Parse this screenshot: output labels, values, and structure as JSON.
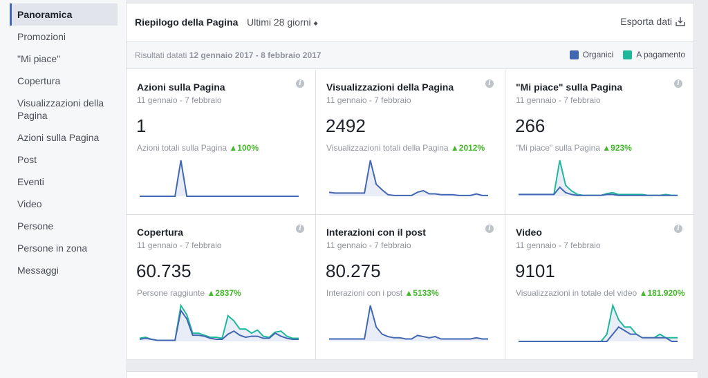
{
  "sidebar": {
    "items": [
      {
        "label": "Panoramica",
        "active": true
      },
      {
        "label": "Promozioni"
      },
      {
        "label": "\"Mi piace\""
      },
      {
        "label": "Copertura"
      },
      {
        "label": "Visualizzazioni della Pagina"
      },
      {
        "label": "Azioni sulla Pagina"
      },
      {
        "label": "Post"
      },
      {
        "label": "Eventi"
      },
      {
        "label": "Video"
      },
      {
        "label": "Persone"
      },
      {
        "label": "Persone in zona"
      },
      {
        "label": "Messaggi"
      }
    ]
  },
  "header": {
    "title": "Riepilogo della Pagina",
    "range": "Ultimi 28 giorni",
    "range_icon": "updown-caret-icon",
    "export": "Esporta dati",
    "export_icon": "download-icon"
  },
  "results": {
    "prefix": "Risultati datati",
    "dates": "12 gennaio 2017 - 8 febbraio 2017"
  },
  "legend": {
    "organic": {
      "label": "Organici",
      "color": "#4267b2"
    },
    "paid": {
      "label": "A pagamento",
      "color": "#20b89a"
    }
  },
  "cards": [
    {
      "title": "Azioni sulla Pagina",
      "date": "11 gennaio - 7 febbraio",
      "value": "1",
      "sub": "Azioni totali sulla Pagina",
      "delta": "▲100%",
      "organic": [
        0,
        0,
        0,
        0,
        0,
        0,
        0,
        1,
        0,
        0,
        0,
        0,
        0,
        0,
        0,
        0,
        0,
        0,
        0,
        0,
        0,
        0,
        0,
        0,
        0,
        0,
        0,
        0
      ],
      "paid": null
    },
    {
      "title": "Visualizzazioni della Pagina",
      "date": "11 gennaio - 7 febbraio",
      "value": "2492",
      "sub": "Visualizzazioni totali della Pagina",
      "delta": "▲2012%",
      "organic": [
        5,
        4,
        4,
        4,
        4,
        4,
        4,
        45,
        15,
        8,
        2,
        1,
        1,
        1,
        1,
        5,
        7,
        3,
        3,
        2,
        2,
        2,
        1,
        1,
        1,
        3,
        1,
        1
      ],
      "paid": null
    },
    {
      "title": "\"Mi piace\" sulla Pagina",
      "date": "11 gennaio - 7 febbraio",
      "value": "266",
      "sub": "\"Mi piace\" sulla Pagina",
      "delta": "▲923%",
      "organic": [
        2,
        2,
        2,
        2,
        2,
        2,
        2,
        10,
        4,
        2,
        1,
        1,
        1,
        1,
        1,
        2,
        2,
        1,
        1,
        1,
        1,
        1,
        1,
        1,
        1,
        1,
        1,
        1
      ],
      "paid": [
        2,
        2,
        2,
        2,
        2,
        2,
        2,
        40,
        12,
        6,
        2,
        1,
        1,
        1,
        1,
        3,
        4,
        2,
        2,
        2,
        2,
        2,
        1,
        1,
        1,
        2,
        1,
        1
      ]
    },
    {
      "title": "Copertura",
      "date": "11 gennaio - 7 febbraio",
      "value": "60.735",
      "sub": "Persone raggiunte",
      "delta": "▲2837%",
      "organic": [
        2,
        3,
        2,
        1,
        1,
        1,
        1,
        30,
        22,
        6,
        6,
        5,
        3,
        2,
        2,
        7,
        10,
        6,
        4,
        5,
        5,
        3,
        3,
        8,
        5,
        3,
        2,
        2
      ],
      "paid": [
        3,
        4,
        2,
        1,
        1,
        1,
        1,
        35,
        26,
        8,
        8,
        6,
        4,
        4,
        3,
        25,
        20,
        12,
        12,
        8,
        11,
        5,
        4,
        9,
        10,
        5,
        3,
        3
      ]
    },
    {
      "title": "Interazioni con il post",
      "date": "11 gennaio - 7 febbraio",
      "value": "80.275",
      "sub": "Interazioni con i post",
      "delta": "▲5133%",
      "organic": [
        2,
        2,
        2,
        2,
        2,
        2,
        2,
        30,
        12,
        6,
        4,
        3,
        3,
        2,
        2,
        5,
        4,
        3,
        4,
        2,
        2,
        2,
        2,
        2,
        2,
        3,
        2,
        2
      ],
      "paid": null
    },
    {
      "title": "Video",
      "date": "11 gennaio - 7 febbraio",
      "value": "9101",
      "sub": "Visualizzazioni in totale del video",
      "delta": "▲181.920%",
      "organic": [
        0,
        0,
        0,
        0,
        0,
        0,
        0,
        0,
        0,
        0,
        0,
        0,
        0,
        0,
        0,
        0,
        2,
        4,
        3,
        2,
        2,
        1,
        1,
        1,
        1,
        1,
        0,
        0
      ],
      "paid": [
        0,
        0,
        0,
        0,
        0,
        0,
        0,
        0,
        0,
        0,
        0,
        0,
        0,
        0,
        0,
        2,
        10,
        6,
        4,
        4,
        2,
        1,
        1,
        1,
        2,
        1,
        1,
        1
      ]
    }
  ]
}
